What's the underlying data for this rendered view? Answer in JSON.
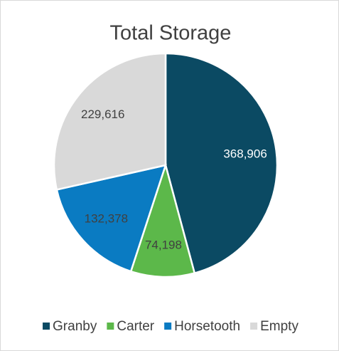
{
  "chart_data": {
    "type": "pie",
    "title": "Total Storage",
    "categories": [
      "Granby",
      "Carter",
      "Horsetooth",
      "Empty"
    ],
    "values": [
      368906,
      74198,
      132378,
      229616
    ],
    "value_labels": [
      "368,906",
      "74,198",
      "132,378",
      "229,616"
    ],
    "colors": [
      "#0b4a63",
      "#5cb84a",
      "#0a7bc2",
      "#d9d9d9"
    ],
    "label_colors": [
      "#ffffff",
      "#404040",
      "#404040",
      "#404040"
    ],
    "legend": "bottom"
  }
}
